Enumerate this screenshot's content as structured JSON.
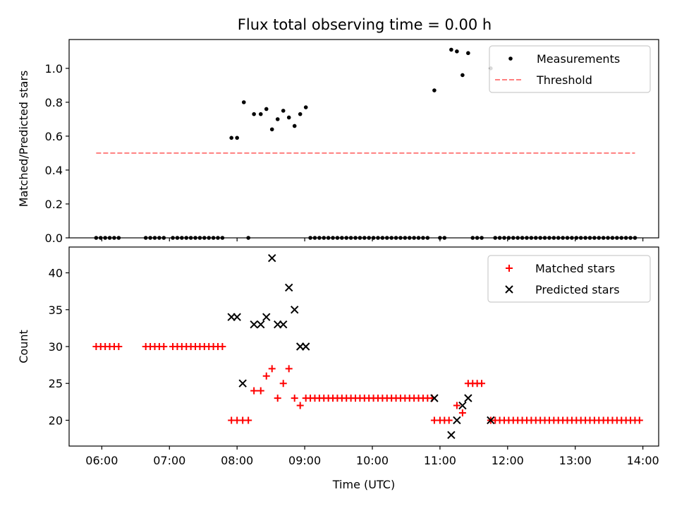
{
  "figure": {
    "title": "Flux total observing time = 0.00 h"
  },
  "colors": {
    "measurement": "#000000",
    "threshold": "#ff7f7f",
    "matched": "#ff0000",
    "predicted": "#000000"
  },
  "chart_data": [
    {
      "type": "scatter",
      "panel": "top",
      "xlabel": "",
      "ylabel": "Matched/Predicted stars",
      "xlim": [
        "05:31",
        "14:14"
      ],
      "ylim": [
        0,
        1.17
      ],
      "yticks": [
        0.0,
        0.2,
        0.4,
        0.6,
        0.8,
        1.0
      ],
      "ytick_labels": [
        "0.0",
        "0.2",
        "0.4",
        "0.6",
        "0.8",
        "1.0"
      ],
      "legend_position": "top-right",
      "grid": false,
      "series": [
        {
          "name": "Measurements",
          "kind": "scatter",
          "points": [
            [
              "05:55",
              0
            ],
            [
              "05:59",
              0
            ],
            [
              "06:03",
              0
            ],
            [
              "06:07",
              0
            ],
            [
              "06:11",
              0
            ],
            [
              "06:15",
              0
            ],
            [
              "06:39",
              0
            ],
            [
              "06:43",
              0
            ],
            [
              "06:47",
              0
            ],
            [
              "06:51",
              0
            ],
            [
              "06:55",
              0
            ],
            [
              "07:03",
              0
            ],
            [
              "07:07",
              0
            ],
            [
              "07:11",
              0
            ],
            [
              "07:15",
              0
            ],
            [
              "07:19",
              0
            ],
            [
              "07:23",
              0
            ],
            [
              "07:27",
              0
            ],
            [
              "07:31",
              0
            ],
            [
              "07:35",
              0
            ],
            [
              "07:39",
              0
            ],
            [
              "07:43",
              0
            ],
            [
              "07:47",
              0
            ],
            [
              "07:55",
              0.59
            ],
            [
              "08:00",
              0.59
            ],
            [
              "08:06",
              0.8
            ],
            [
              "08:10",
              0
            ],
            [
              "08:15",
              0.73
            ],
            [
              "08:21",
              0.73
            ],
            [
              "08:26",
              0.76
            ],
            [
              "08:31",
              0.64
            ],
            [
              "08:36",
              0.7
            ],
            [
              "08:41",
              0.75
            ],
            [
              "08:46",
              0.71
            ],
            [
              "08:51",
              0.66
            ],
            [
              "08:56",
              0.73
            ],
            [
              "09:01",
              0.77
            ],
            [
              "09:05",
              0
            ],
            [
              "09:09",
              0
            ],
            [
              "09:13",
              0
            ],
            [
              "09:17",
              0
            ],
            [
              "09:21",
              0
            ],
            [
              "09:25",
              0
            ],
            [
              "09:29",
              0
            ],
            [
              "09:33",
              0
            ],
            [
              "09:37",
              0
            ],
            [
              "09:41",
              0
            ],
            [
              "09:45",
              0
            ],
            [
              "09:49",
              0
            ],
            [
              "09:53",
              0
            ],
            [
              "09:57",
              0
            ],
            [
              "10:01",
              0
            ],
            [
              "10:05",
              0
            ],
            [
              "10:09",
              0
            ],
            [
              "10:13",
              0
            ],
            [
              "10:17",
              0
            ],
            [
              "10:21",
              0
            ],
            [
              "10:25",
              0
            ],
            [
              "10:29",
              0
            ],
            [
              "10:33",
              0
            ],
            [
              "10:37",
              0
            ],
            [
              "10:41",
              0
            ],
            [
              "10:45",
              0
            ],
            [
              "10:49",
              0
            ],
            [
              "10:55",
              0.87
            ],
            [
              "11:00",
              0
            ],
            [
              "11:04",
              0
            ],
            [
              "11:10",
              1.11
            ],
            [
              "11:15",
              1.1
            ],
            [
              "11:20",
              0.96
            ],
            [
              "11:25",
              1.09
            ],
            [
              "11:29",
              0
            ],
            [
              "11:33",
              0
            ],
            [
              "11:37",
              0
            ],
            [
              "11:45",
              1.0
            ],
            [
              "11:49",
              0
            ],
            [
              "11:53",
              0
            ],
            [
              "11:57",
              0
            ],
            [
              "12:01",
              0
            ],
            [
              "12:05",
              0
            ],
            [
              "12:09",
              0
            ],
            [
              "12:13",
              0
            ],
            [
              "12:17",
              0
            ],
            [
              "12:21",
              0
            ],
            [
              "12:25",
              0
            ],
            [
              "12:29",
              0
            ],
            [
              "12:33",
              0
            ],
            [
              "12:37",
              0
            ],
            [
              "12:41",
              0
            ],
            [
              "12:45",
              0
            ],
            [
              "12:49",
              0
            ],
            [
              "12:53",
              0
            ],
            [
              "12:57",
              0
            ],
            [
              "13:01",
              0
            ],
            [
              "13:05",
              0
            ],
            [
              "13:09",
              0
            ],
            [
              "13:13",
              0
            ],
            [
              "13:17",
              0
            ],
            [
              "13:21",
              0
            ],
            [
              "13:25",
              0
            ],
            [
              "13:29",
              0
            ],
            [
              "13:33",
              0
            ],
            [
              "13:37",
              0
            ],
            [
              "13:41",
              0
            ],
            [
              "13:45",
              0
            ],
            [
              "13:49",
              0
            ],
            [
              "13:53",
              0
            ]
          ]
        },
        {
          "name": "Threshold",
          "kind": "dashed-line",
          "points": [
            [
              "05:55",
              0.5
            ],
            [
              "13:53",
              0.5
            ]
          ]
        }
      ]
    },
    {
      "type": "scatter",
      "panel": "bottom",
      "xlabel": "Time (UTC)",
      "ylabel": "Count",
      "xlim": [
        "05:31",
        "14:14"
      ],
      "ylim": [
        16.5,
        43.5
      ],
      "xticks": [
        "06:00",
        "07:00",
        "08:00",
        "09:00",
        "10:00",
        "11:00",
        "12:00",
        "13:00",
        "14:00"
      ],
      "yticks": [
        20,
        25,
        30,
        35,
        40
      ],
      "ytick_labels": [
        "20",
        "25",
        "30",
        "35",
        "40"
      ],
      "legend_position": "top-right",
      "grid": false,
      "series": [
        {
          "name": "Matched stars",
          "kind": "plus",
          "points": [
            [
              "05:55",
              30
            ],
            [
              "05:59",
              30
            ],
            [
              "06:03",
              30
            ],
            [
              "06:07",
              30
            ],
            [
              "06:11",
              30
            ],
            [
              "06:15",
              30
            ],
            [
              "06:39",
              30
            ],
            [
              "06:43",
              30
            ],
            [
              "06:47",
              30
            ],
            [
              "06:51",
              30
            ],
            [
              "06:55",
              30
            ],
            [
              "07:03",
              30
            ],
            [
              "07:07",
              30
            ],
            [
              "07:11",
              30
            ],
            [
              "07:15",
              30
            ],
            [
              "07:19",
              30
            ],
            [
              "07:23",
              30
            ],
            [
              "07:27",
              30
            ],
            [
              "07:31",
              30
            ],
            [
              "07:35",
              30
            ],
            [
              "07:39",
              30
            ],
            [
              "07:43",
              30
            ],
            [
              "07:47",
              30
            ],
            [
              "07:55",
              20
            ],
            [
              "08:00",
              20
            ],
            [
              "08:05",
              20
            ],
            [
              "08:10",
              20
            ],
            [
              "08:15",
              24
            ],
            [
              "08:21",
              24
            ],
            [
              "08:26",
              26
            ],
            [
              "08:31",
              27
            ],
            [
              "08:36",
              23
            ],
            [
              "08:41",
              25
            ],
            [
              "08:46",
              27
            ],
            [
              "08:51",
              23
            ],
            [
              "08:56",
              22
            ],
            [
              "09:01",
              23
            ],
            [
              "09:05",
              23
            ],
            [
              "09:09",
              23
            ],
            [
              "09:13",
              23
            ],
            [
              "09:17",
              23
            ],
            [
              "09:21",
              23
            ],
            [
              "09:25",
              23
            ],
            [
              "09:29",
              23
            ],
            [
              "09:33",
              23
            ],
            [
              "09:37",
              23
            ],
            [
              "09:41",
              23
            ],
            [
              "09:45",
              23
            ],
            [
              "09:49",
              23
            ],
            [
              "09:53",
              23
            ],
            [
              "09:57",
              23
            ],
            [
              "10:01",
              23
            ],
            [
              "10:05",
              23
            ],
            [
              "10:09",
              23
            ],
            [
              "10:13",
              23
            ],
            [
              "10:17",
              23
            ],
            [
              "10:21",
              23
            ],
            [
              "10:25",
              23
            ],
            [
              "10:29",
              23
            ],
            [
              "10:33",
              23
            ],
            [
              "10:37",
              23
            ],
            [
              "10:41",
              23
            ],
            [
              "10:45",
              23
            ],
            [
              "10:49",
              23
            ],
            [
              "10:53",
              23
            ],
            [
              "10:55",
              20
            ],
            [
              "11:00",
              20
            ],
            [
              "11:04",
              20
            ],
            [
              "11:08",
              20
            ],
            [
              "11:15",
              22
            ],
            [
              "11:20",
              21
            ],
            [
              "11:25",
              25
            ],
            [
              "11:29",
              25
            ],
            [
              "11:33",
              25
            ],
            [
              "11:37",
              25
            ],
            [
              "11:45",
              20
            ],
            [
              "11:49",
              20
            ],
            [
              "11:53",
              20
            ],
            [
              "11:57",
              20
            ],
            [
              "12:01",
              20
            ],
            [
              "12:05",
              20
            ],
            [
              "12:09",
              20
            ],
            [
              "12:13",
              20
            ],
            [
              "12:17",
              20
            ],
            [
              "12:21",
              20
            ],
            [
              "12:25",
              20
            ],
            [
              "12:29",
              20
            ],
            [
              "12:33",
              20
            ],
            [
              "12:37",
              20
            ],
            [
              "12:41",
              20
            ],
            [
              "12:45",
              20
            ],
            [
              "12:49",
              20
            ],
            [
              "12:53",
              20
            ],
            [
              "12:57",
              20
            ],
            [
              "13:01",
              20
            ],
            [
              "13:05",
              20
            ],
            [
              "13:09",
              20
            ],
            [
              "13:13",
              20
            ],
            [
              "13:17",
              20
            ],
            [
              "13:21",
              20
            ],
            [
              "13:25",
              20
            ],
            [
              "13:29",
              20
            ],
            [
              "13:33",
              20
            ],
            [
              "13:37",
              20
            ],
            [
              "13:41",
              20
            ],
            [
              "13:45",
              20
            ],
            [
              "13:49",
              20
            ],
            [
              "13:53",
              20
            ],
            [
              "13:57",
              20
            ]
          ]
        },
        {
          "name": "Predicted stars",
          "kind": "x",
          "points": [
            [
              "07:55",
              34
            ],
            [
              "08:00",
              34
            ],
            [
              "08:05",
              25
            ],
            [
              "08:15",
              33
            ],
            [
              "08:21",
              33
            ],
            [
              "08:26",
              34
            ],
            [
              "08:31",
              42
            ],
            [
              "08:36",
              33
            ],
            [
              "08:41",
              33
            ],
            [
              "08:46",
              38
            ],
            [
              "08:51",
              35
            ],
            [
              "08:56",
              30
            ],
            [
              "09:01",
              30
            ],
            [
              "10:55",
              23
            ],
            [
              "11:10",
              18
            ],
            [
              "11:15",
              20
            ],
            [
              "11:20",
              22
            ],
            [
              "11:25",
              23
            ],
            [
              "11:45",
              20
            ]
          ]
        }
      ]
    }
  ]
}
